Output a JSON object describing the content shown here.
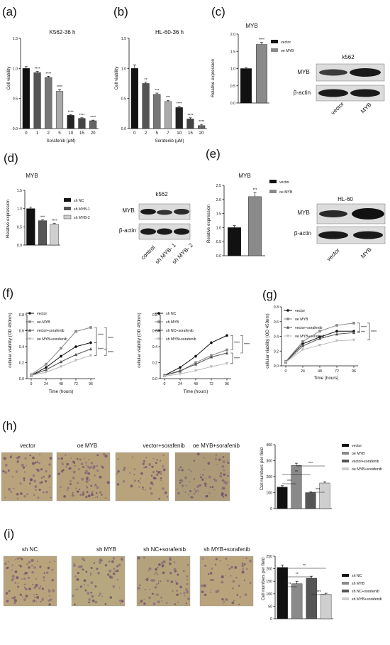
{
  "panels": {
    "a": {
      "label": "(a)",
      "title": "K562-36 h",
      "ylabel": "Cell viability",
      "xlabel": "Sorafenib (μM)",
      "yticks": [
        "0.0",
        "0.5",
        "1.0",
        "1.5"
      ],
      "cats": [
        "0",
        "1",
        "2",
        "5",
        "10",
        "15",
        "20"
      ],
      "values": [
        1.0,
        0.93,
        0.85,
        0.62,
        0.22,
        0.17,
        0.13
      ],
      "sig": [
        "",
        "****",
        "****",
        "****",
        "****",
        "****",
        "****"
      ]
    },
    "b": {
      "label": "(b)",
      "title": "HL-60-36 h",
      "ylabel": "Cell viability",
      "xlabel": "Sorafenib (μM)",
      "yticks": [
        "0.0",
        "0.5",
        "1.0",
        "1.5"
      ],
      "cats": [
        "0",
        "2",
        "5",
        "7",
        "10",
        "15",
        "20"
      ],
      "values": [
        1.0,
        0.75,
        0.57,
        0.45,
        0.35,
        0.16,
        0.05
      ],
      "sig": [
        "",
        "**",
        "***",
        "***",
        "****",
        "****",
        "****"
      ]
    },
    "c": {
      "label": "(c)",
      "title": "MYB",
      "ylabel": "Relative expression",
      "yticks": [
        "0.0",
        "0.5",
        "1.0",
        "1.5",
        "2.0"
      ],
      "legend": [
        "vector",
        "oe MYB"
      ],
      "values": [
        1.0,
        1.7
      ],
      "sig": "****",
      "blot": {
        "cell": "k562",
        "rows": [
          "MYB",
          "β-actin"
        ],
        "lanes": [
          "vector",
          "MYB"
        ]
      }
    },
    "d": {
      "label": "(d)",
      "title": "MYB",
      "ylabel": "Relative expression",
      "yticks": [
        "0.0",
        "0.5",
        "1.0",
        "1.5"
      ],
      "legend": [
        "sh NC",
        "sh MYB-1",
        "sh MYB-2"
      ],
      "values": [
        1.0,
        0.67,
        0.57
      ],
      "sig": [
        "",
        "***",
        "****"
      ],
      "blot": {
        "cell": "k562",
        "rows": [
          "MYB",
          "β-actin"
        ],
        "lanes": [
          "control",
          "sh MYB- 1",
          "sh MYB- 2"
        ]
      }
    },
    "e": {
      "label": "(e)",
      "title": "MYB",
      "ylabel": "Relative expression",
      "yticks": [
        "0.0",
        "0.5",
        "1.0",
        "1.5",
        "2.0",
        "2.5"
      ],
      "legend": [
        "vector",
        "oe MYB"
      ],
      "values": [
        1.0,
        2.1
      ],
      "sig": "***",
      "blot": {
        "cell": "HL-60",
        "rows": [
          "MYB",
          "β-actin"
        ],
        "lanes": [
          "vector",
          "MYB"
        ]
      }
    },
    "f": {
      "label": "(f)",
      "ylabel": "cellular viability (OD 450nm)",
      "xlabel": "Time (hours)",
      "xticks": [
        "0",
        "24",
        "48",
        "72",
        "96"
      ],
      "yticks": [
        "0.0",
        "0.2",
        "0.4",
        "0.6",
        "0.8"
      ],
      "left": {
        "series": [
          {
            "name": "vector",
            "values": [
              0.04,
              0.14,
              0.28,
              0.4,
              0.45
            ]
          },
          {
            "name": "oe-MYB",
            "values": [
              0.05,
              0.18,
              0.38,
              0.59,
              0.64
            ]
          },
          {
            "name": "vector+sorafenib",
            "values": [
              0.04,
              0.11,
              0.21,
              0.3,
              0.37
            ]
          },
          {
            "name": "oe MYB+sorafenib",
            "values": [
              0.04,
              0.08,
              0.15,
              0.23,
              0.29
            ]
          }
        ],
        "sig": [
          "****",
          "****",
          "****",
          "****"
        ]
      },
      "right": {
        "series": [
          {
            "name": "sh NC",
            "values": [
              0.04,
              0.14,
              0.28,
              0.45,
              0.54
            ]
          },
          {
            "name": "sh MYB",
            "values": [
              0.04,
              0.09,
              0.2,
              0.29,
              0.36
            ]
          },
          {
            "name": "sh NC+sorafenib",
            "values": [
              0.04,
              0.1,
              0.18,
              0.27,
              0.32
            ]
          },
          {
            "name": "sh MYB+sorafenib",
            "values": [
              0.03,
              0.06,
              0.1,
              0.15,
              0.19
            ]
          }
        ],
        "sig": [
          "****",
          "****",
          "****"
        ]
      }
    },
    "g": {
      "label": "(g)",
      "ylabel": "cellular viability (OD 450nm)",
      "xlabel": "Time (hours)",
      "xticks": [
        "0",
        "24",
        "48",
        "72",
        "96"
      ],
      "yticks": [
        "0.0",
        "0.2",
        "0.4",
        "0.6",
        "0.8"
      ],
      "series": [
        {
          "name": "vector",
          "values": [
            0.06,
            0.3,
            0.39,
            0.47,
            0.47
          ]
        },
        {
          "name": "oe MYB",
          "values": [
            0.06,
            0.33,
            0.47,
            0.55,
            0.58
          ]
        },
        {
          "name": "vector+sorafenib",
          "values": [
            0.05,
            0.27,
            0.37,
            0.43,
            0.45
          ]
        },
        {
          "name": "oe MYB+sorafenib",
          "values": [
            0.05,
            0.22,
            0.28,
            0.34,
            0.35
          ]
        }
      ],
      "sig": [
        "****",
        "****",
        "***"
      ]
    },
    "h": {
      "label": "(h)",
      "images": [
        "vector",
        "oe MYB",
        "vector+sorafenib",
        "oe MYB+sorafenib"
      ],
      "ylabel": "Cell numbers per field",
      "yticks": [
        "0",
        "100",
        "200",
        "300",
        "400"
      ],
      "legend": [
        "vector",
        "oe MYB",
        "vector+sorafenib",
        "oe MYB+sorafenib"
      ],
      "values": [
        135,
        270,
        100,
        160
      ],
      "sig": [
        "***",
        "**",
        "***",
        "***"
      ]
    },
    "i": {
      "label": "(i)",
      "images": [
        "sh NC",
        "sh MYB",
        "sh NC+sorafenib",
        "sh MYB+sorafenib"
      ],
      "ylabel": "Cell numbers per field",
      "yticks": [
        "0",
        "50",
        "100",
        "150",
        "200",
        "250"
      ],
      "legend": [
        "sh NC",
        "sh MYB",
        "sh NC+sorafenib",
        "sh MYB+sorafenib"
      ],
      "values": [
        205,
        140,
        162,
        98
      ],
      "sig": [
        "**",
        "**",
        "**",
        "***"
      ]
    }
  },
  "colors": {
    "black": "#111111",
    "dark": "#555555",
    "mid": "#8a8a8a",
    "light": "#cfcfcf",
    "blot": "#1a1a1a",
    "blotbg": "#dcdcdc",
    "micro": "#b5a07a"
  }
}
